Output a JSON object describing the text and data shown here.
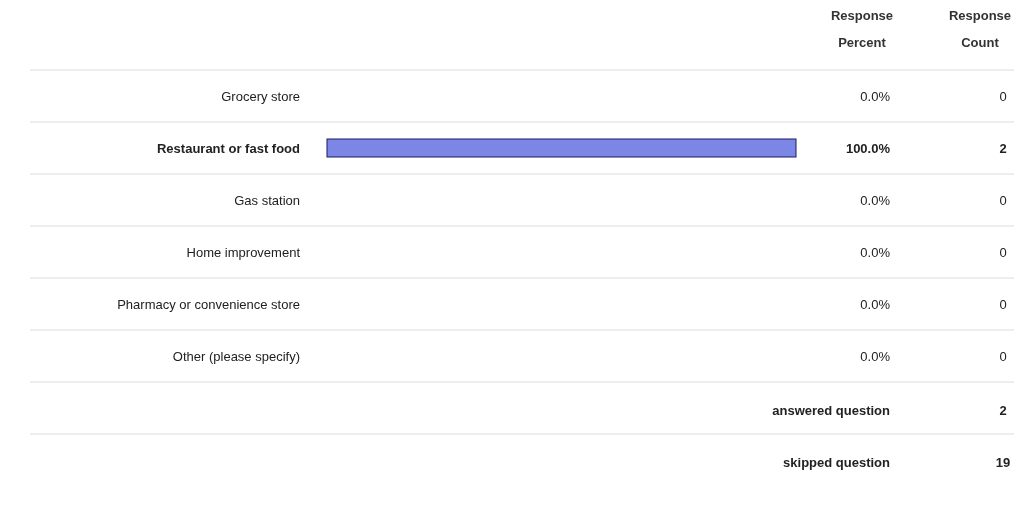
{
  "chart_data": {
    "type": "bar",
    "orientation": "horizontal",
    "categories": [
      "Grocery store",
      "Restaurant or fast food",
      "Gas station",
      "Home improvement",
      "Pharmacy or convenience store",
      "Other (please specify)"
    ],
    "values": [
      0,
      100,
      0,
      0,
      0,
      0
    ],
    "value_labels": [
      "0.0%",
      "100.0%",
      "0.0%",
      "0.0%",
      "0.0%",
      "0.0%"
    ],
    "color": "#7c86e6",
    "annotations": [
      "Response Percent",
      "Response Count",
      "0",
      "2",
      "0",
      "0",
      "0",
      "0",
      "answered question",
      "2",
      "skipped question",
      "19"
    ]
  }
}
